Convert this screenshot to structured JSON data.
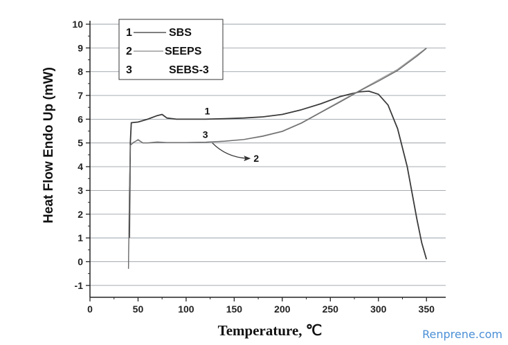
{
  "chart_data": {
    "type": "line",
    "xlabel": "Temperature,  ℃",
    "ylabel": "Heat Flow Endo Up (mW)",
    "xlim": [
      0,
      370
    ],
    "ylim": [
      -1.5,
      10
    ],
    "xticks": [
      0,
      50,
      100,
      150,
      200,
      250,
      300,
      350
    ],
    "yticks": [
      -1,
      0,
      1,
      2,
      3,
      4,
      5,
      6,
      7,
      8,
      9,
      10
    ],
    "grid": "horizontal",
    "legend_position": "top-left",
    "legend": [
      {
        "num": "1",
        "label": "SBS"
      },
      {
        "num": "2",
        "label": "SEEPS"
      },
      {
        "num": "3",
        "label": "SEBS-3"
      }
    ],
    "series": [
      {
        "name": "SBS",
        "key": "1",
        "color": "#3a3a3a",
        "x": [
          41,
          42,
          43,
          50,
          60,
          70,
          75,
          80,
          90,
          100,
          120,
          140,
          160,
          180,
          200,
          220,
          240,
          260,
          270,
          280,
          290,
          300,
          310,
          320,
          330,
          340,
          345,
          350
        ],
        "y": [
          1.0,
          5.0,
          5.85,
          5.88,
          6.0,
          6.15,
          6.2,
          6.05,
          6.0,
          6.0,
          6.0,
          6.02,
          6.05,
          6.1,
          6.2,
          6.4,
          6.65,
          6.95,
          7.05,
          7.15,
          7.18,
          7.05,
          6.6,
          5.6,
          4.0,
          1.8,
          0.8,
          0.1
        ]
      },
      {
        "name": "SEEPS",
        "key": "2",
        "color": "#9a9a9a",
        "x": [
          40,
          41,
          42,
          45,
          50,
          55,
          60,
          70,
          80,
          100,
          120,
          140,
          160,
          180,
          200,
          220,
          240,
          260,
          280,
          300,
          320,
          340,
          350
        ],
        "y": [
          -0.3,
          3.0,
          4.9,
          5.0,
          5.15,
          5.0,
          5.0,
          5.05,
          5.02,
          5.02,
          5.03,
          5.08,
          5.15,
          5.3,
          5.5,
          5.85,
          6.3,
          6.75,
          7.2,
          7.65,
          8.1,
          8.7,
          9.0
        ]
      },
      {
        "name": "SEBS-3",
        "key": "3",
        "color": "#6a6a6a",
        "x": [
          40,
          41,
          42,
          45,
          50,
          55,
          60,
          70,
          80,
          100,
          120,
          140,
          160,
          180,
          200,
          220,
          240,
          260,
          280,
          300,
          320,
          340,
          350
        ],
        "y": [
          -0.3,
          3.0,
          4.9,
          5.02,
          5.12,
          5.0,
          5.0,
          5.02,
          5.02,
          5.02,
          5.03,
          5.07,
          5.14,
          5.28,
          5.48,
          5.83,
          6.28,
          6.72,
          7.18,
          7.6,
          8.05,
          8.65,
          8.98
        ]
      }
    ],
    "annotations": [
      {
        "text": "1",
        "x": 122,
        "y": 6.35
      },
      {
        "text": "3",
        "x": 120,
        "y": 5.35
      },
      {
        "text": "2",
        "x": 173,
        "y": 4.35
      }
    ]
  },
  "watermark": "Renprene.com"
}
